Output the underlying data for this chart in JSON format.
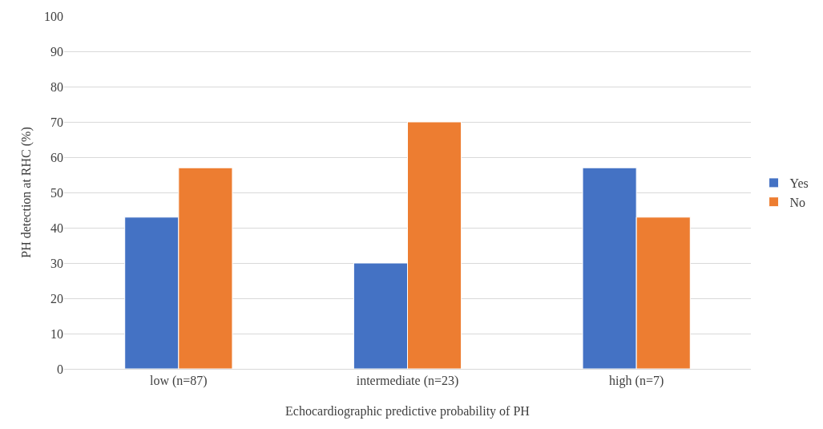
{
  "chart_data": {
    "type": "bar",
    "xlabel": "Echocardiographic predictive probability of PH",
    "ylabel": "PH detection at RHC (%)",
    "categories": [
      "low (n=87)",
      "intermediate (n=23)",
      "high (n=7)"
    ],
    "series": [
      {
        "name": "Yes",
        "color": "#4472c4",
        "values": [
          43,
          30,
          57
        ]
      },
      {
        "name": "No",
        "color": "#ed7d31",
        "values": [
          57,
          70,
          43
        ]
      }
    ],
    "ylim": [
      0,
      100
    ],
    "yticks": [
      0,
      10,
      20,
      30,
      40,
      50,
      60,
      70,
      80,
      90,
      100
    ],
    "grid": "y",
    "legend": "right"
  }
}
